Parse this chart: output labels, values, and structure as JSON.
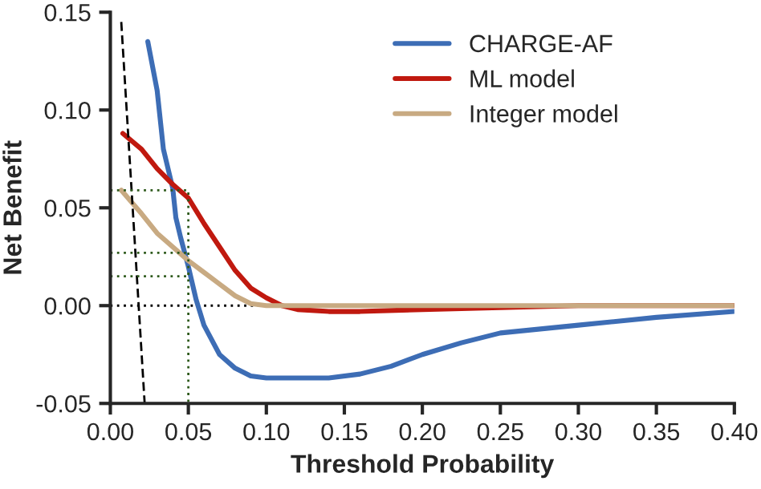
{
  "chart_data": {
    "type": "line",
    "xlabel": "Threshold Probability",
    "ylabel": "Net Benefit",
    "xlim": [
      0,
      0.4
    ],
    "xticks": [
      {
        "value": 0,
        "label": "0.00"
      },
      {
        "value": 0.05,
        "label": "0.05"
      },
      {
        "value": 0.1,
        "label": "0.10"
      },
      {
        "value": 0.15,
        "label": "0.15"
      },
      {
        "value": 0.2,
        "label": "0.20"
      },
      {
        "value": 0.25,
        "label": "0.25"
      },
      {
        "value": 0.3,
        "label": "0.30"
      },
      {
        "value": 0.35,
        "label": "0.35"
      },
      {
        "value": 0.4,
        "label": "0.40"
      }
    ],
    "ylim": [
      -0.05,
      0.15
    ],
    "yticks": [
      {
        "value": -0.05,
        "label": "-0.05"
      },
      {
        "value": 0,
        "label": "0.00"
      },
      {
        "value": 0.05,
        "label": "0.05"
      },
      {
        "value": 0.1,
        "label": "0.10"
      },
      {
        "value": 0.15,
        "label": "0.15"
      }
    ],
    "grid": false,
    "legend": "top right",
    "ref_lines": [
      {
        "axis": "y",
        "value": 0,
        "color": "#000000",
        "line_style": "dotted"
      }
    ],
    "series": [
      {
        "name": "CHARGE-AF",
        "color": "#3d6db5",
        "x": [
          0.024,
          0.03,
          0.034,
          0.04,
          0.042,
          0.045,
          0.05,
          0.055,
          0.06,
          0.07,
          0.08,
          0.09,
          0.1,
          0.14,
          0.16,
          0.18,
          0.2,
          0.225,
          0.25,
          0.3,
          0.35,
          0.4
        ],
        "values": [
          0.135,
          0.11,
          0.08,
          0.06,
          0.045,
          0.035,
          0.02,
          0.003,
          -0.01,
          -0.025,
          -0.032,
          -0.036,
          -0.037,
          -0.037,
          -0.035,
          -0.031,
          -0.025,
          -0.019,
          -0.014,
          -0.01,
          -0.006,
          -0.003
        ]
      },
      {
        "name": "ML model",
        "color": "#c0190f",
        "x": [
          0.008,
          0.02,
          0.03,
          0.04,
          0.05,
          0.06,
          0.07,
          0.08,
          0.09,
          0.1,
          0.11,
          0.12,
          0.14,
          0.16,
          0.2,
          0.25,
          0.3,
          0.4
        ],
        "values": [
          0.088,
          0.08,
          0.07,
          0.062,
          0.055,
          0.042,
          0.03,
          0.018,
          0.009,
          0.004,
          0.0,
          -0.002,
          -0.003,
          -0.003,
          -0.002,
          -0.001,
          0.0,
          0.0
        ]
      },
      {
        "name": "Integer model",
        "color": "#c8aa82",
        "x": [
          0.007,
          0.02,
          0.03,
          0.04,
          0.05,
          0.06,
          0.07,
          0.08,
          0.09,
          0.1,
          0.4
        ],
        "values": [
          0.059,
          0.047,
          0.037,
          0.03,
          0.023,
          0.017,
          0.011,
          0.005,
          0.001,
          0.0,
          0.0
        ]
      },
      {
        "color": "#000000",
        "line_style": "dashed",
        "x": [
          0.007,
          0.022
        ],
        "values": [
          0.145,
          -0.05
        ]
      },
      {
        "color": "#2e5a1c",
        "line_style": "dotted",
        "x": [
          0,
          0.05,
          0.05
        ],
        "values": [
          0.059,
          0.059,
          -0.05
        ]
      },
      {
        "color": "#2e5a1c",
        "line_style": "dotted",
        "x": [
          0,
          0.05
        ],
        "values": [
          0.027,
          0.027
        ]
      },
      {
        "color": "#2e5a1c",
        "line_style": "dotted",
        "x": [
          0,
          0.05
        ],
        "values": [
          0.015,
          0.015
        ]
      }
    ]
  }
}
